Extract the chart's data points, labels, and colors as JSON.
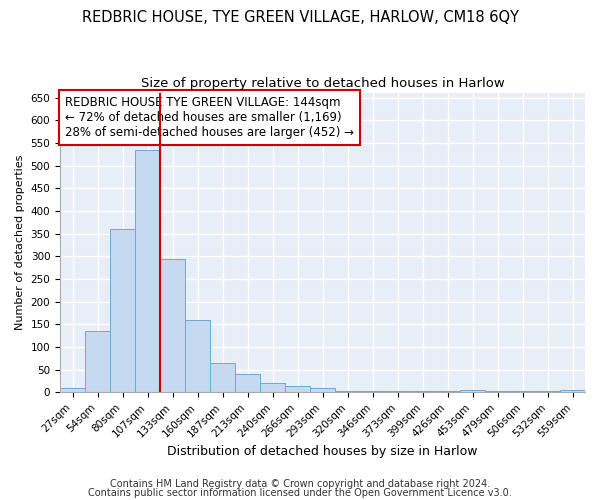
{
  "title": "REDBRIC HOUSE, TYE GREEN VILLAGE, HARLOW, CM18 6QY",
  "subtitle": "Size of property relative to detached houses in Harlow",
  "xlabel": "Distribution of detached houses by size in Harlow",
  "ylabel": "Number of detached properties",
  "bar_labels": [
    "27sqm",
    "54sqm",
    "80sqm",
    "107sqm",
    "133sqm",
    "160sqm",
    "187sqm",
    "213sqm",
    "240sqm",
    "266sqm",
    "293sqm",
    "320sqm",
    "346sqm",
    "373sqm",
    "399sqm",
    "426sqm",
    "453sqm",
    "479sqm",
    "506sqm",
    "532sqm",
    "559sqm"
  ],
  "bar_heights": [
    10,
    135,
    360,
    535,
    295,
    160,
    65,
    40,
    20,
    13,
    9,
    3,
    3,
    3,
    3,
    3,
    6,
    3,
    3,
    3,
    6
  ],
  "bar_color": "#c5d9f0",
  "bar_edge_color": "#6aaad4",
  "red_line_color": "#cc0000",
  "ylim": [
    0,
    660
  ],
  "yticks": [
    0,
    50,
    100,
    150,
    200,
    250,
    300,
    350,
    400,
    450,
    500,
    550,
    600,
    650
  ],
  "annotation_text": "REDBRIC HOUSE TYE GREEN VILLAGE: 144sqm\n← 72% of detached houses are smaller (1,169)\n28% of semi-detached houses are larger (452) →",
  "annotation_box_color": "#ffffff",
  "annotation_border_color": "#cc0000",
  "footer_text1": "Contains HM Land Registry data © Crown copyright and database right 2024.",
  "footer_text2": "Contains public sector information licensed under the Open Government Licence v3.0.",
  "background_color": "#e8eef8",
  "fig_background_color": "#ffffff",
  "grid_color": "#ffffff",
  "title_fontsize": 10.5,
  "subtitle_fontsize": 9.5,
  "xlabel_fontsize": 9,
  "ylabel_fontsize": 8,
  "tick_fontsize": 7.5,
  "footer_fontsize": 7,
  "annotation_fontsize": 8.5
}
